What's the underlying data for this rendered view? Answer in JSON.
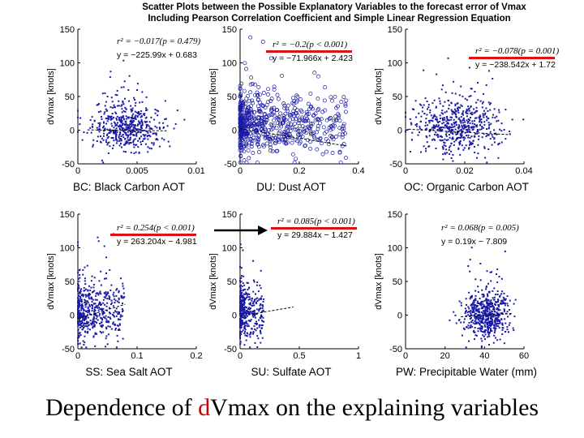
{
  "figure": {
    "title_line1": "Scatter Plots between the Possible Explanatory Variables to the forecast error of Vmax",
    "title_line2": "Including Pearson Correlation Coefficient and Simple Linear Regression Equation"
  },
  "slide_title": {
    "prefix": "Dependence of ",
    "accent": "d",
    "suffix": "Vmax on the explaining variables"
  },
  "colors": {
    "points": "#1a1aa6",
    "highlight": "#dd1111",
    "fit": "#000000"
  },
  "chart_data": [
    {
      "type": "scatter",
      "id": "bc",
      "caption": "BC: Black Carbon AOT",
      "ylabel": "dVmax [knots]",
      "xlim": [
        0,
        0.01
      ],
      "ylim": [
        -50,
        150
      ],
      "xticks": [
        "0",
        "0.005",
        "0.01"
      ],
      "yticks": [
        "-50",
        "0",
        "50",
        "100",
        "150"
      ],
      "r2_text": "r² = −0.017(p = 0.479)",
      "eq_text": "y = −225.99x + 0.683",
      "slope": -225.99,
      "intercept": 0.683,
      "highlight": false,
      "cloud": {
        "x_range": [
          0.0008,
          0.0075
        ],
        "y_center": 5,
        "y_spread": 18,
        "n": 520,
        "open": false
      }
    },
    {
      "type": "scatter",
      "id": "du",
      "caption": "DU: Dust AOT",
      "ylabel": "dVmax [knots]",
      "xlim": [
        0,
        0.4
      ],
      "ylim": [
        -50,
        150
      ],
      "xticks": [
        "0",
        "0.2",
        "0.4"
      ],
      "yticks": [
        "-50",
        "0",
        "50",
        "100",
        "150"
      ],
      "r2_text": "r² = −0.2(p < 0.001)",
      "eq_text": "y = −71.966x + 2.423",
      "slope": -71.966,
      "intercept": 2.423,
      "highlight": true,
      "cloud": {
        "x_range": [
          0.0,
          0.36
        ],
        "y_center": 8,
        "y_spread": 22,
        "n": 620,
        "open": true
      }
    },
    {
      "type": "scatter",
      "id": "oc",
      "caption": "OC: Organic Carbon AOT",
      "ylabel": "dVmax [knots]",
      "xlim": [
        0,
        0.04
      ],
      "ylim": [
        -50,
        150
      ],
      "xticks": [
        "0",
        "0.02",
        "0.04"
      ],
      "yticks": [
        "-50",
        "0",
        "50",
        "100",
        "150"
      ],
      "r2_text": "r² = −0.078(p = 0.001)",
      "eq_text": "y = −238.542x + 1.72",
      "slope": -238.542,
      "intercept": 1.72,
      "highlight": true,
      "cloud": {
        "x_range": [
          0.001,
          0.035
        ],
        "y_center": 6,
        "y_spread": 20,
        "n": 560,
        "open": false
      }
    },
    {
      "type": "scatter",
      "id": "ss",
      "caption": "SS: Sea Salt AOT",
      "ylabel": "dVmax [knots]",
      "xlim": [
        0,
        0.2
      ],
      "ylim": [
        -50,
        150
      ],
      "xticks": [
        "0",
        "0.1",
        "0.2"
      ],
      "yticks": [
        "-50",
        "0",
        "50",
        "100",
        "150"
      ],
      "r2_text": "r² = 0.254(p < 0.001)",
      "eq_text": "y = 263.204x − 4.981",
      "slope": 263.204,
      "intercept": -4.981,
      "highlight": true,
      "cloud": {
        "x_range": [
          0.0,
          0.08
        ],
        "y_center": 6,
        "y_spread": 22,
        "n": 520,
        "open": false
      }
    },
    {
      "type": "scatter",
      "id": "su",
      "caption": "SU: Sulfate AOT",
      "ylabel": "dVmax [knots]",
      "xlim": [
        0,
        1
      ],
      "ylim": [
        -50,
        150
      ],
      "xticks": [
        "0",
        "0.5",
        "1"
      ],
      "yticks": [
        "-50",
        "0",
        "50",
        "100",
        "150"
      ],
      "r2_text": "r² = 0.085(p < 0.001)",
      "eq_text": "y = 29.884x − 1.427",
      "slope": 29.884,
      "intercept": -1.427,
      "highlight": true,
      "cloud": {
        "x_range": [
          0.0,
          0.2
        ],
        "y_center": 4,
        "y_spread": 20,
        "n": 420,
        "open": false
      }
    },
    {
      "type": "scatter",
      "id": "pw",
      "caption": "PW: Precipitable Water (mm)",
      "ylabel": "dVmax [knots]",
      "xlim": [
        0,
        60
      ],
      "ylim": [
        -50,
        150
      ],
      "xticks": [
        "0",
        "20",
        "40",
        "60"
      ],
      "yticks": [
        "-50",
        "0",
        "50",
        "100",
        "150"
      ],
      "r2_text": "r² = 0.068(p = 0.005)",
      "eq_text": "y = 0.19x − 7.809",
      "slope": 0.19,
      "intercept": -7.809,
      "highlight": false,
      "cloud": {
        "x_range": [
          28,
          54
        ],
        "y_center": 0,
        "y_spread": 18,
        "n": 560,
        "open": false
      }
    }
  ]
}
